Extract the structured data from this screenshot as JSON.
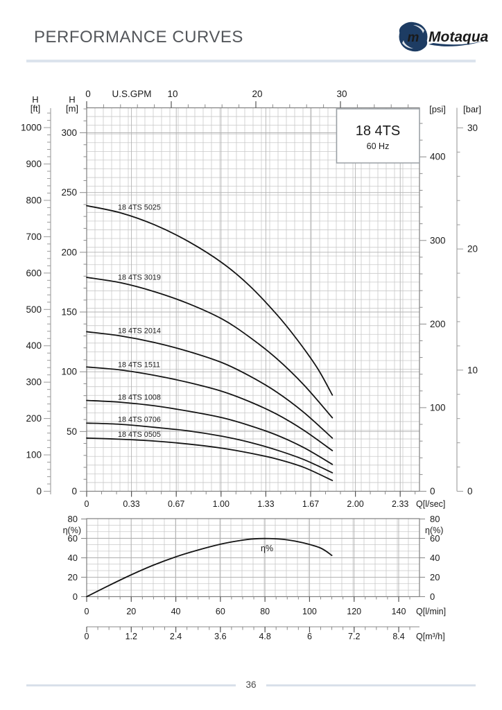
{
  "header": {
    "title": "PERFORMANCE CURVES",
    "brand": "Motaqua",
    "brand_initial": "m"
  },
  "footer": {
    "page_number": "36"
  },
  "chart_data": {
    "type": "line",
    "title": "18 4TS",
    "subtitle": "60 Hz",
    "top_axis": {
      "label": "U.S.GPM",
      "ticks": [
        "0",
        "10",
        "20",
        "30"
      ],
      "range": [
        0,
        39
      ]
    },
    "left_axis_ft": {
      "name": "H",
      "unit": "[ft]",
      "ticks": [
        "1000",
        "900",
        "800",
        "700",
        "600",
        "500",
        "400",
        "300",
        "200",
        "100",
        "0"
      ],
      "range": [
        0,
        1050
      ]
    },
    "left_axis_m": {
      "name": "H",
      "unit": "[m]",
      "ticks": [
        "300",
        "250",
        "200",
        "150",
        "100",
        "50",
        "0"
      ],
      "range": [
        0,
        320
      ]
    },
    "right_axis_psi": {
      "unit": "[psi]",
      "ticks": [
        "400",
        "300",
        "200",
        "100",
        "0"
      ],
      "range": [
        0,
        458
      ]
    },
    "right_axis_bar": {
      "unit": "[bar]",
      "ticks": [
        "30",
        "20",
        "10",
        "0"
      ],
      "range": [
        0,
        31.6
      ]
    },
    "bottom_axis_lsec": {
      "label": "Q[l/sec]",
      "ticks": [
        "0",
        "0.33",
        "0.67",
        "1.00",
        "1.33",
        "1.67",
        "2.00",
        "2.33"
      ],
      "range": [
        0,
        2.45
      ]
    },
    "series": [
      {
        "name": "18 4TS 5025",
        "points_q_lsec_h_m": [
          [
            0,
            239
          ],
          [
            0.25,
            233
          ],
          [
            0.5,
            223
          ],
          [
            0.75,
            209
          ],
          [
            1.0,
            191
          ],
          [
            1.2,
            172
          ],
          [
            1.4,
            148
          ],
          [
            1.55,
            127
          ],
          [
            1.7,
            103
          ],
          [
            1.81,
            80.5
          ]
        ]
      },
      {
        "name": "18 4TS 3019",
        "points_q_lsec_h_m": [
          [
            0,
            179
          ],
          [
            0.25,
            174.5
          ],
          [
            0.5,
            167
          ],
          [
            0.75,
            157
          ],
          [
            1.0,
            144
          ],
          [
            1.2,
            129
          ],
          [
            1.4,
            111
          ],
          [
            1.6,
            89
          ],
          [
            1.81,
            61.5
          ]
        ]
      },
      {
        "name": "18 4TS 2014",
        "points_q_lsec_h_m": [
          [
            0,
            133.5
          ],
          [
            0.25,
            130
          ],
          [
            0.5,
            124.5
          ],
          [
            0.75,
            117
          ],
          [
            1.0,
            107.5
          ],
          [
            1.2,
            96.5
          ],
          [
            1.4,
            83
          ],
          [
            1.6,
            66
          ],
          [
            1.81,
            44.5
          ]
        ]
      },
      {
        "name": "18 4TS 1511",
        "points_q_lsec_h_m": [
          [
            0,
            104
          ],
          [
            0.25,
            101.5
          ],
          [
            0.5,
            97
          ],
          [
            0.75,
            91
          ],
          [
            1.0,
            83.5
          ],
          [
            1.2,
            75
          ],
          [
            1.4,
            64.5
          ],
          [
            1.6,
            51
          ],
          [
            1.81,
            34
          ]
        ]
      },
      {
        "name": "18 4TS 1008",
        "points_q_lsec_h_m": [
          [
            0,
            76
          ],
          [
            0.25,
            74.5
          ],
          [
            0.5,
            71.5
          ],
          [
            0.75,
            67
          ],
          [
            1.0,
            61.5
          ],
          [
            1.2,
            55
          ],
          [
            1.4,
            47
          ],
          [
            1.6,
            36.5
          ],
          [
            1.81,
            22.5
          ]
        ]
      },
      {
        "name": "18 4TS 0706",
        "points_q_lsec_h_m": [
          [
            0,
            57
          ],
          [
            0.25,
            56
          ],
          [
            0.5,
            53.5
          ],
          [
            0.75,
            50.5
          ],
          [
            1.0,
            46
          ],
          [
            1.2,
            41
          ],
          [
            1.4,
            34.5
          ],
          [
            1.6,
            26.5
          ],
          [
            1.81,
            15.5
          ]
        ]
      },
      {
        "name": "18 4TS 0505",
        "points_q_lsec_h_m": [
          [
            0,
            44.5
          ],
          [
            0.25,
            43.5
          ],
          [
            0.5,
            42
          ],
          [
            0.75,
            39.5
          ],
          [
            1.0,
            36
          ],
          [
            1.2,
            32
          ],
          [
            1.4,
            27
          ],
          [
            1.6,
            20
          ],
          [
            1.81,
            9
          ]
        ]
      }
    ],
    "efficiency": {
      "curve_label": "η%",
      "left_axis": {
        "unit": "η(%)",
        "ticks": [
          "80",
          "60",
          "40",
          "20",
          "0"
        ],
        "range": [
          0,
          80
        ]
      },
      "right_axis": {
        "unit": "η(%)",
        "ticks": [
          "80",
          "60",
          "40",
          "20",
          "0"
        ],
        "range": [
          0,
          80
        ]
      },
      "bottom_axis_lmin": {
        "label": "Q[l/min]",
        "ticks": [
          "0",
          "20",
          "40",
          "60",
          "80",
          "100",
          "120",
          "140"
        ],
        "range": [
          0,
          149
        ]
      },
      "points_q_lmin_eta": [
        [
          0,
          0
        ],
        [
          10,
          11.5
        ],
        [
          20,
          22.5
        ],
        [
          30,
          32.5
        ],
        [
          40,
          41
        ],
        [
          50,
          48
        ],
        [
          60,
          54
        ],
        [
          68,
          57.5
        ],
        [
          75,
          59.5
        ],
        [
          82,
          59.8
        ],
        [
          90,
          58.5
        ],
        [
          97,
          55.5
        ],
        [
          105,
          50
        ],
        [
          110,
          42.5
        ]
      ]
    },
    "bottom_axis_m3h": {
      "label": "Q[m³/h]",
      "ticks": [
        "0",
        "1.2",
        "2.4",
        "3.6",
        "4.8",
        "6",
        "7.2",
        "8.4"
      ],
      "range": [
        0,
        8.95
      ]
    },
    "grid": true,
    "line_color": "#141414",
    "grid_color": "#c9c9c9",
    "brand_color": "#1d3c63"
  }
}
